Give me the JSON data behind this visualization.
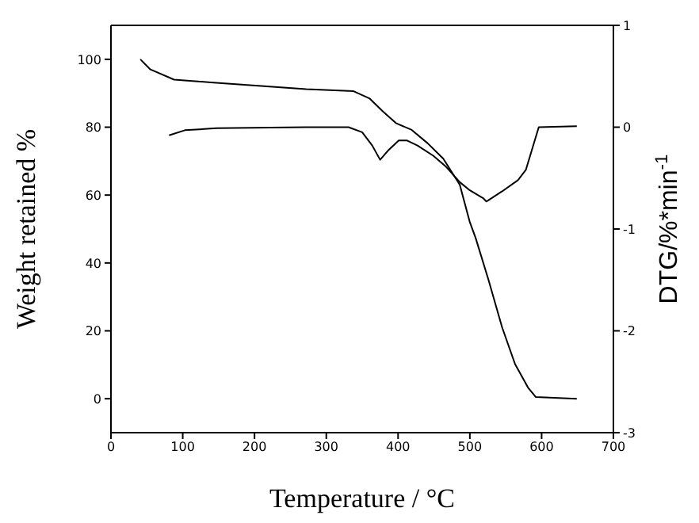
{
  "chart_data": {
    "type": "line",
    "xlabel": "Temperature / °C",
    "ylabel": "Weight retained %",
    "y2label": "DTG/%*min$^{-1}$",
    "xlim": [
      0,
      700
    ],
    "xticks": [
      0,
      100,
      200,
      300,
      400,
      500,
      600,
      700
    ],
    "ylim": [
      -10,
      110
    ],
    "yticks": [
      0,
      20,
      40,
      60,
      80,
      100
    ],
    "y2lim": [
      -3,
      1
    ],
    "y2ticks": [
      -3,
      -2,
      -1,
      0,
      1
    ],
    "marker": "none",
    "line_style": "solid",
    "series": [
      {
        "color": "#000000",
        "x": [
          41,
          55,
          88,
          139,
          272,
          338,
          360,
          379,
          397,
          419,
          441,
          463,
          486,
          500,
          508,
          526,
          545,
          563,
          581,
          592,
          649
        ],
        "values": [
          100,
          97,
          94,
          93.2,
          91.2,
          90.6,
          88.5,
          84.6,
          81.2,
          79.2,
          75.3,
          70.7,
          63,
          52,
          47.4,
          35,
          21,
          10.2,
          3.3,
          0.5,
          0
        ]
      },
      {
        "color": "#000000",
        "axis": "y2",
        "x": [
          81,
          103,
          147,
          272,
          331,
          350,
          364,
          375,
          386,
          401,
          412,
          427,
          449,
          467,
          486,
          500,
          519,
          523,
          545,
          567,
          578,
          596,
          649
        ],
        "values": [
          -0.08,
          -0.03,
          -0.01,
          0,
          0,
          -0.05,
          -0.18,
          -0.32,
          -0.23,
          -0.13,
          -0.13,
          -0.18,
          -0.28,
          -0.39,
          -0.54,
          -0.62,
          -0.7,
          -0.73,
          -0.63,
          -0.52,
          -0.42,
          0,
          0.01
        ]
      }
    ]
  }
}
